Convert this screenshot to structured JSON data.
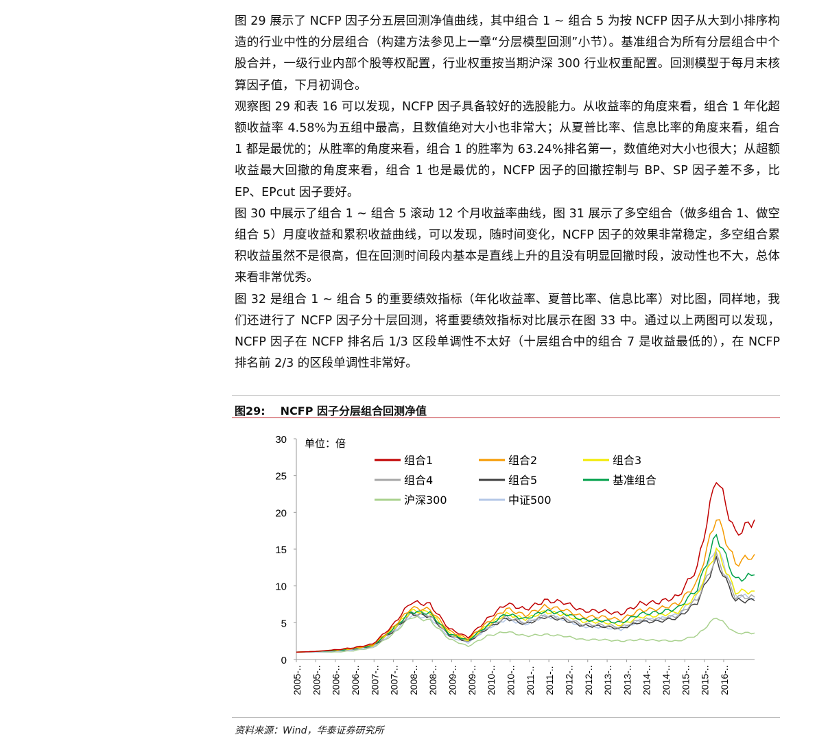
{
  "paragraphs": [
    "图 29 展示了 NCFP 因子分五层回测净值曲线，其中组合 1 ~ 组合 5 为按 NCFP 因子从大到小排序构造的行业中性的分层组合（构建方法参见上一章“分层模型回测”小节）。基准组合为所有分层组合中个股合并，一级行业内部个股等权配置，行业权重按当期沪深 300 行业权重配置。回测模型于每月末核算因子值，下月初调仓。",
    "观察图 29 和表 16 可以发现，NCFP 因子具备较好的选股能力。从收益率的角度来看，组合 1 年化超额收益率 4.58%为五组中最高，且数值绝对大小也非常大；从夏普比率、信息比率的角度来看，组合 1 都是最优的；从胜率的角度来看，组合 1 的胜率为 63.24%排名第一，数值绝对大小也很大；从超额收益最大回撤的角度来看，组合 1 也是最优的，NCFP 因子的回撤控制与 BP、SP 因子差不多，比 EP、EPcut 因子要好。",
    "图 30 中展示了组合 1 ~ 组合 5 滚动 12 个月收益率曲线，图 31 展示了多空组合（做多组合 1、做空组合 5）月度收益和累积收益曲线，可以发现，随时间变化，NCFP 因子的效果非常稳定，多空组合累积收益虽然不是很高，但在回测时间段内基本是直线上升的且没有明显回撤时段，波动性也不大，总体来看非常优秀。",
    "图 32 是组合 1 ~ 组合 5 的重要绩效指标（年化收益率、夏普比率、信息比率）对比图，同样地，我们还进行了 NCFP 因子分十层回测，将重要绩效指标对比展示在图 33 中。通过以上两图可以发现，NCFP 因子在 NCFP 排名后 1/3 区段单调性不太好（十层组合中的组合 7 是收益最低的），在 NCFP 排名前 2/3 的区段单调性非常好。"
  ],
  "figure": {
    "number": "图29:",
    "title": "NCFP 因子分层组合回测净值",
    "source": "资料来源：Wind，华泰证券研究所"
  },
  "chart_data": {
    "type": "line",
    "unit_label": "单位：倍",
    "ylim": [
      0,
      30
    ],
    "yticks": [
      0,
      5,
      10,
      15,
      20,
      25,
      30
    ],
    "x_tick_labels": [
      "2005-..",
      "2005-..",
      "2006-..",
      "2006-..",
      "2007-..",
      "2007-..",
      "2008-..",
      "2008-..",
      "2009-..",
      "2009-..",
      "2010-..",
      "2010-..",
      "2011-..",
      "2011-..",
      "2012-..",
      "2012-..",
      "2013-..",
      "2013-..",
      "2014-..",
      "2014-..",
      "2015-..",
      "2015-..",
      "2016-.."
    ],
    "series": [
      {
        "name": "组合1",
        "color": "#c00000",
        "values": [
          1,
          1.1,
          1.3,
          1.6,
          2.1,
          4.5,
          7.8,
          7.5,
          4.2,
          3,
          5.5,
          7.6,
          6.8,
          8,
          7.8,
          6.6,
          6.6,
          6.2,
          7.6,
          7.8,
          8.6,
          12.5,
          25,
          17,
          19
        ]
      },
      {
        "name": "组合2",
        "color": "#f59a00",
        "values": [
          1,
          1.1,
          1.3,
          1.5,
          2,
          4.2,
          7,
          6.8,
          3.9,
          2.8,
          5,
          6.9,
          6,
          7.2,
          6.8,
          5.8,
          5.8,
          5.4,
          6.7,
          6.9,
          7.6,
          10.5,
          19.5,
          13,
          14.3
        ]
      },
      {
        "name": "组合3",
        "color": "#f2ea00",
        "values": [
          1,
          1.1,
          1.2,
          1.5,
          1.9,
          4,
          6.6,
          6.4,
          3.6,
          2.6,
          4.6,
          6.2,
          5.5,
          6.5,
          6.1,
          5.2,
          5.1,
          4.7,
          5.8,
          6,
          6.5,
          8.8,
          15,
          9.2,
          9.3
        ]
      },
      {
        "name": "组合4",
        "color": "#a6a6a6",
        "values": [
          1,
          1.1,
          1.2,
          1.4,
          1.8,
          3.8,
          6.3,
          6,
          3.4,
          2.5,
          4.3,
          5.8,
          5,
          6,
          5.6,
          4.8,
          4.7,
          4.4,
          5.4,
          5.5,
          6,
          8.2,
          14,
          8.5,
          8.5
        ]
      },
      {
        "name": "组合5",
        "color": "#404040",
        "values": [
          1,
          1.1,
          1.2,
          1.4,
          1.8,
          3.7,
          6.2,
          5.9,
          3.3,
          2.4,
          4.2,
          5.6,
          4.8,
          5.8,
          5.4,
          4.6,
          4.5,
          4.2,
          5.1,
          5.2,
          5.7,
          7.8,
          13.5,
          8,
          8
        ]
      },
      {
        "name": "基准组合",
        "color": "#00a04a",
        "values": [
          1,
          1.1,
          1.2,
          1.5,
          1.9,
          4,
          6.5,
          6.3,
          3.5,
          2.6,
          4.6,
          6.2,
          5.5,
          6.6,
          6.3,
          5.4,
          5.3,
          5,
          6.2,
          6.4,
          7,
          9.6,
          17,
          10.8,
          11.5
        ]
      },
      {
        "name": "沪深300",
        "color": "#a9d18e",
        "values": [
          1,
          1,
          1,
          1.2,
          1.6,
          3.3,
          5.8,
          5.3,
          2.8,
          1.8,
          3.2,
          3.8,
          3.2,
          3.4,
          3.2,
          2.7,
          2.7,
          2.5,
          2.7,
          2.6,
          2.5,
          3.3,
          5.8,
          3.6,
          3.6
        ]
      },
      {
        "name": "中证500",
        "color": "#b4c7e7",
        "values": [
          1,
          1,
          1.1,
          1.3,
          1.7,
          3.5,
          6,
          5.7,
          3.1,
          2.3,
          4.2,
          5.5,
          4.8,
          5.9,
          5.5,
          4.5,
          4.4,
          4.1,
          5.3,
          5.5,
          6.1,
          8.7,
          15.5,
          8.7,
          8.4
        ]
      }
    ]
  }
}
